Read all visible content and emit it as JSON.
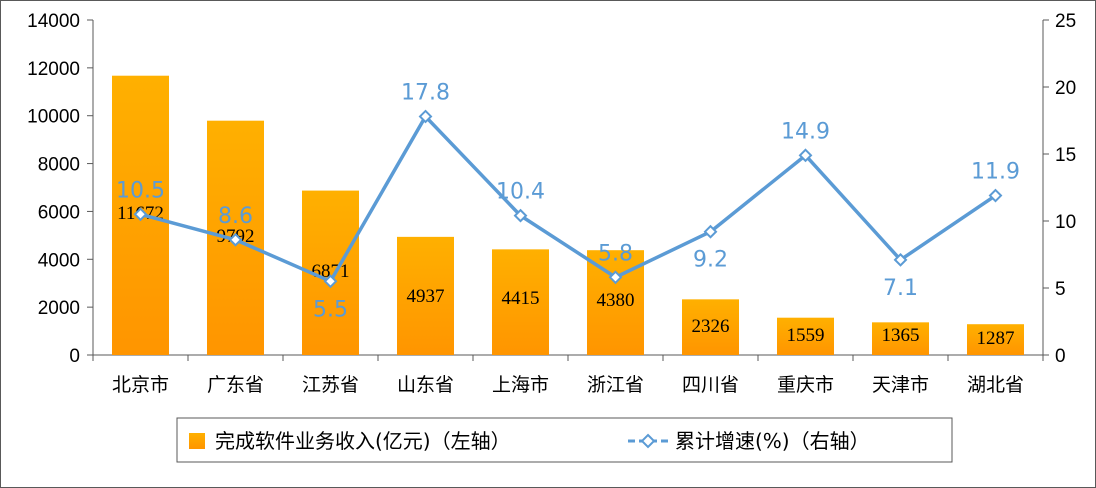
{
  "chart_data": {
    "type": "bar",
    "categories": [
      "北京市",
      "广东省",
      "江苏省",
      "山东省",
      "上海市",
      "浙江省",
      "四川省",
      "重庆市",
      "天津市",
      "湖北省"
    ],
    "series": [
      {
        "name": "完成软件业务收入(亿元)（左轴）",
        "type": "bar",
        "axis": "left",
        "values": [
          11672,
          9792,
          6871,
          4937,
          4415,
          4380,
          2326,
          1559,
          1365,
          1287
        ]
      },
      {
        "name": "累计增速(%)（右轴）",
        "type": "line",
        "axis": "right",
        "values": [
          10.5,
          8.6,
          5.5,
          17.8,
          10.4,
          5.8,
          9.2,
          14.9,
          7.1,
          11.9
        ]
      }
    ],
    "y_left": {
      "min": 0,
      "max": 14000,
      "ticks": [
        0,
        2000,
        4000,
        6000,
        8000,
        10000,
        12000,
        14000
      ]
    },
    "y_right": {
      "min": 0,
      "max": 25,
      "ticks": [
        0,
        5,
        10,
        15,
        20,
        25
      ]
    },
    "grid": false,
    "legend_position": "bottom",
    "colors": {
      "bar_top": "#ffb000",
      "bar_bottom": "#ff9500",
      "line": "#5b9bd5",
      "marker_fill": "#ffffff"
    }
  }
}
